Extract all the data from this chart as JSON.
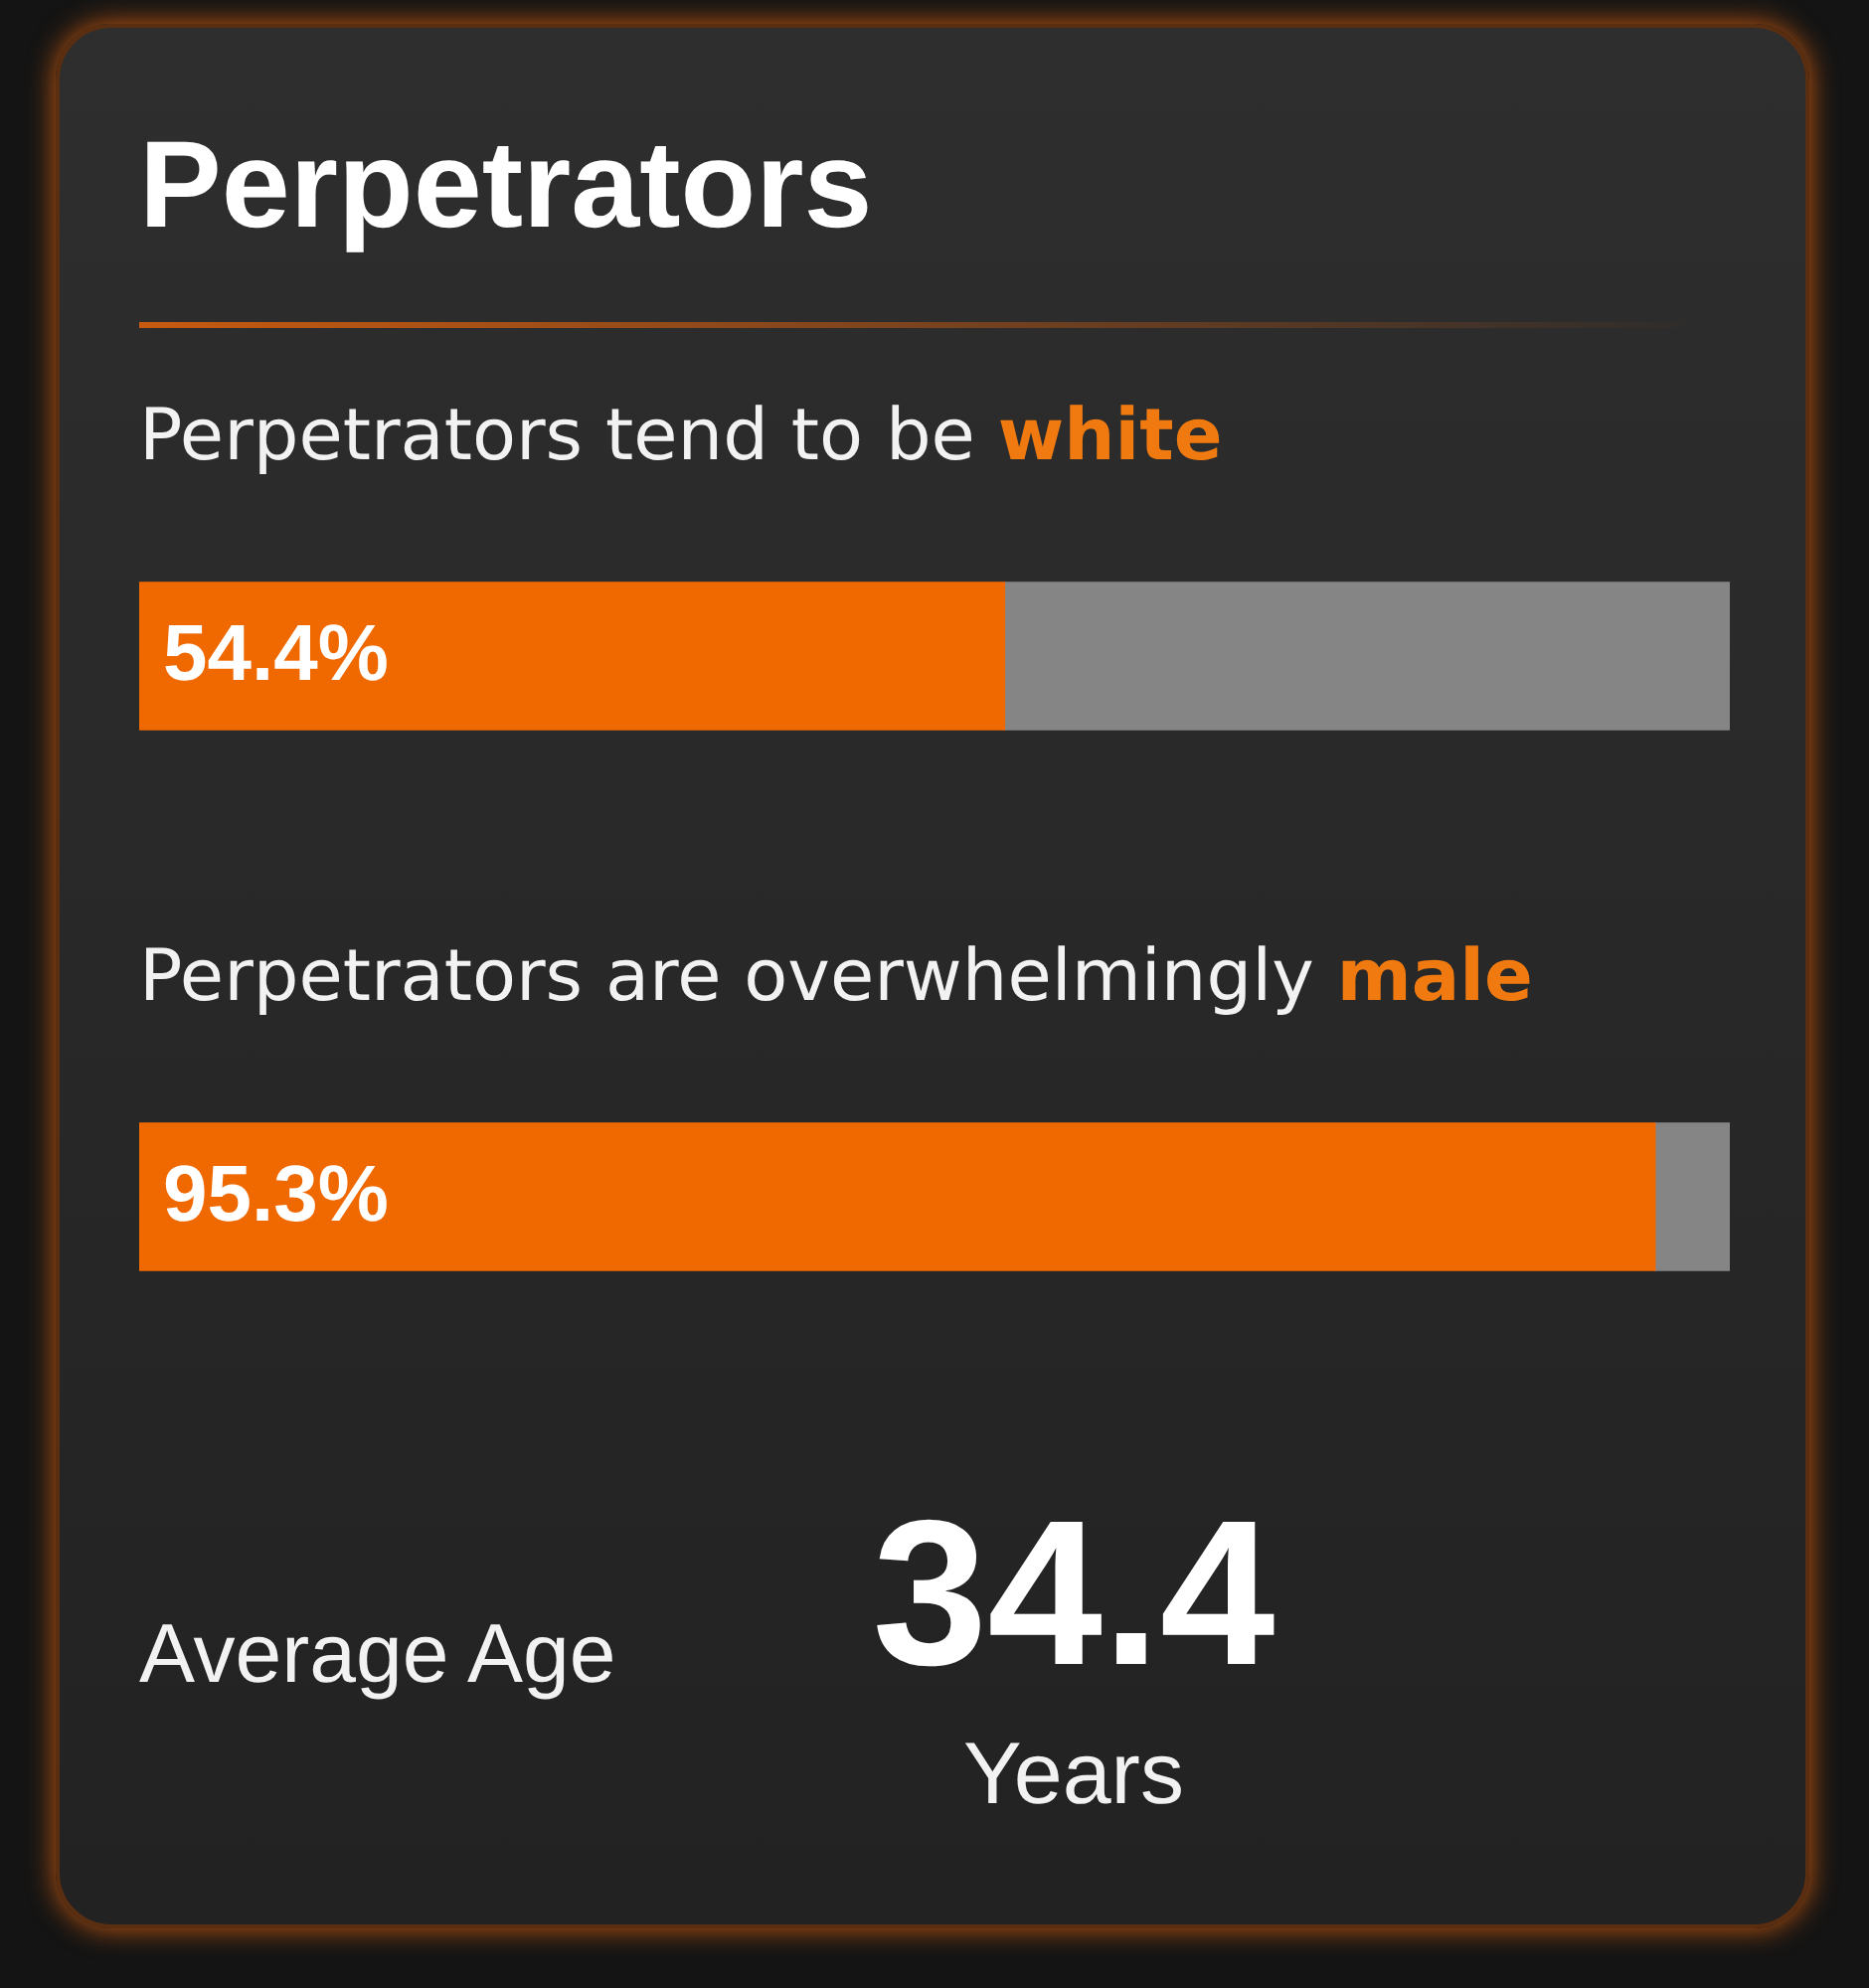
{
  "chart_data": [
    {
      "type": "bar",
      "title": "Perpetrators",
      "orientation": "horizontal",
      "stacked": true,
      "categories": [
        "Perpetrators tend to be white",
        "Perpetrators are overwhelmingly male"
      ],
      "xlim": [
        0,
        100
      ],
      "tick_labels": "y",
      "series": [
        {
          "color": "#f06800",
          "values": [
            54.4,
            95.3
          ],
          "value_labels": [
            "54.4%",
            "95.3%"
          ]
        },
        {
          "color": "#858585",
          "values": [
            45.6,
            4.7
          ]
        }
      ]
    },
    {
      "type": "other",
      "title": "Average Age",
      "annotations": [
        "34.4",
        "Years"
      ]
    }
  ]
}
